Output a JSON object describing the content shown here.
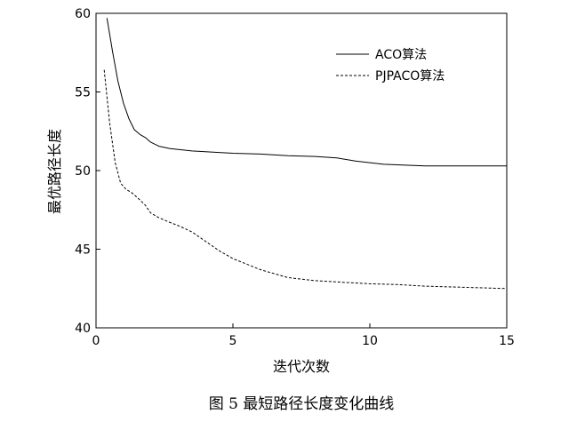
{
  "chart_data": {
    "type": "line",
    "title": "",
    "xlabel": "迭代次数",
    "ylabel": "最优路径长度",
    "xlim": [
      0,
      15
    ],
    "ylim": [
      40,
      60
    ],
    "xticks": [
      0,
      5,
      10,
      15
    ],
    "yticks": [
      40,
      45,
      50,
      55,
      60
    ],
    "legend": "top-right",
    "grid": false,
    "series": [
      {
        "name": "ACO算法",
        "style": "solid",
        "color": "#000000",
        "points": [
          [
            0.4,
            59.7
          ],
          [
            0.6,
            57.6
          ],
          [
            0.8,
            55.7
          ],
          [
            1.0,
            54.3
          ],
          [
            1.2,
            53.3
          ],
          [
            1.4,
            52.6
          ],
          [
            1.6,
            52.3
          ],
          [
            1.8,
            52.1
          ],
          [
            2.0,
            51.8
          ],
          [
            2.3,
            51.55
          ],
          [
            2.7,
            51.4
          ],
          [
            3.5,
            51.25
          ],
          [
            5,
            51.1
          ],
          [
            6,
            51.05
          ],
          [
            7,
            50.95
          ],
          [
            8,
            50.9
          ],
          [
            8.8,
            50.8
          ],
          [
            9.5,
            50.6
          ],
          [
            10.5,
            50.4
          ],
          [
            12,
            50.3
          ],
          [
            13,
            50.3
          ],
          [
            15,
            50.3
          ]
        ]
      },
      {
        "name": "PJPACO算法",
        "style": "dashed",
        "color": "#000000",
        "points": [
          [
            0.3,
            56.4
          ],
          [
            0.5,
            53.0
          ],
          [
            0.7,
            50.5
          ],
          [
            0.9,
            49.2
          ],
          [
            1.1,
            48.8
          ],
          [
            1.3,
            48.6
          ],
          [
            1.5,
            48.3
          ],
          [
            1.8,
            47.8
          ],
          [
            2.0,
            47.3
          ],
          [
            2.3,
            47.0
          ],
          [
            2.7,
            46.7
          ],
          [
            3.0,
            46.5
          ],
          [
            3.5,
            46.1
          ],
          [
            4.0,
            45.5
          ],
          [
            4.5,
            44.9
          ],
          [
            5.0,
            44.4
          ],
          [
            6.0,
            43.7
          ],
          [
            7.0,
            43.2
          ],
          [
            8.0,
            43.0
          ],
          [
            9.0,
            42.9
          ],
          [
            10.0,
            42.8
          ],
          [
            11.0,
            42.75
          ],
          [
            12.0,
            42.65
          ],
          [
            13.0,
            42.6
          ],
          [
            14.0,
            42.55
          ],
          [
            15.0,
            42.5
          ]
        ]
      }
    ]
  },
  "caption": "图 5  最短路径长度变化曲线"
}
